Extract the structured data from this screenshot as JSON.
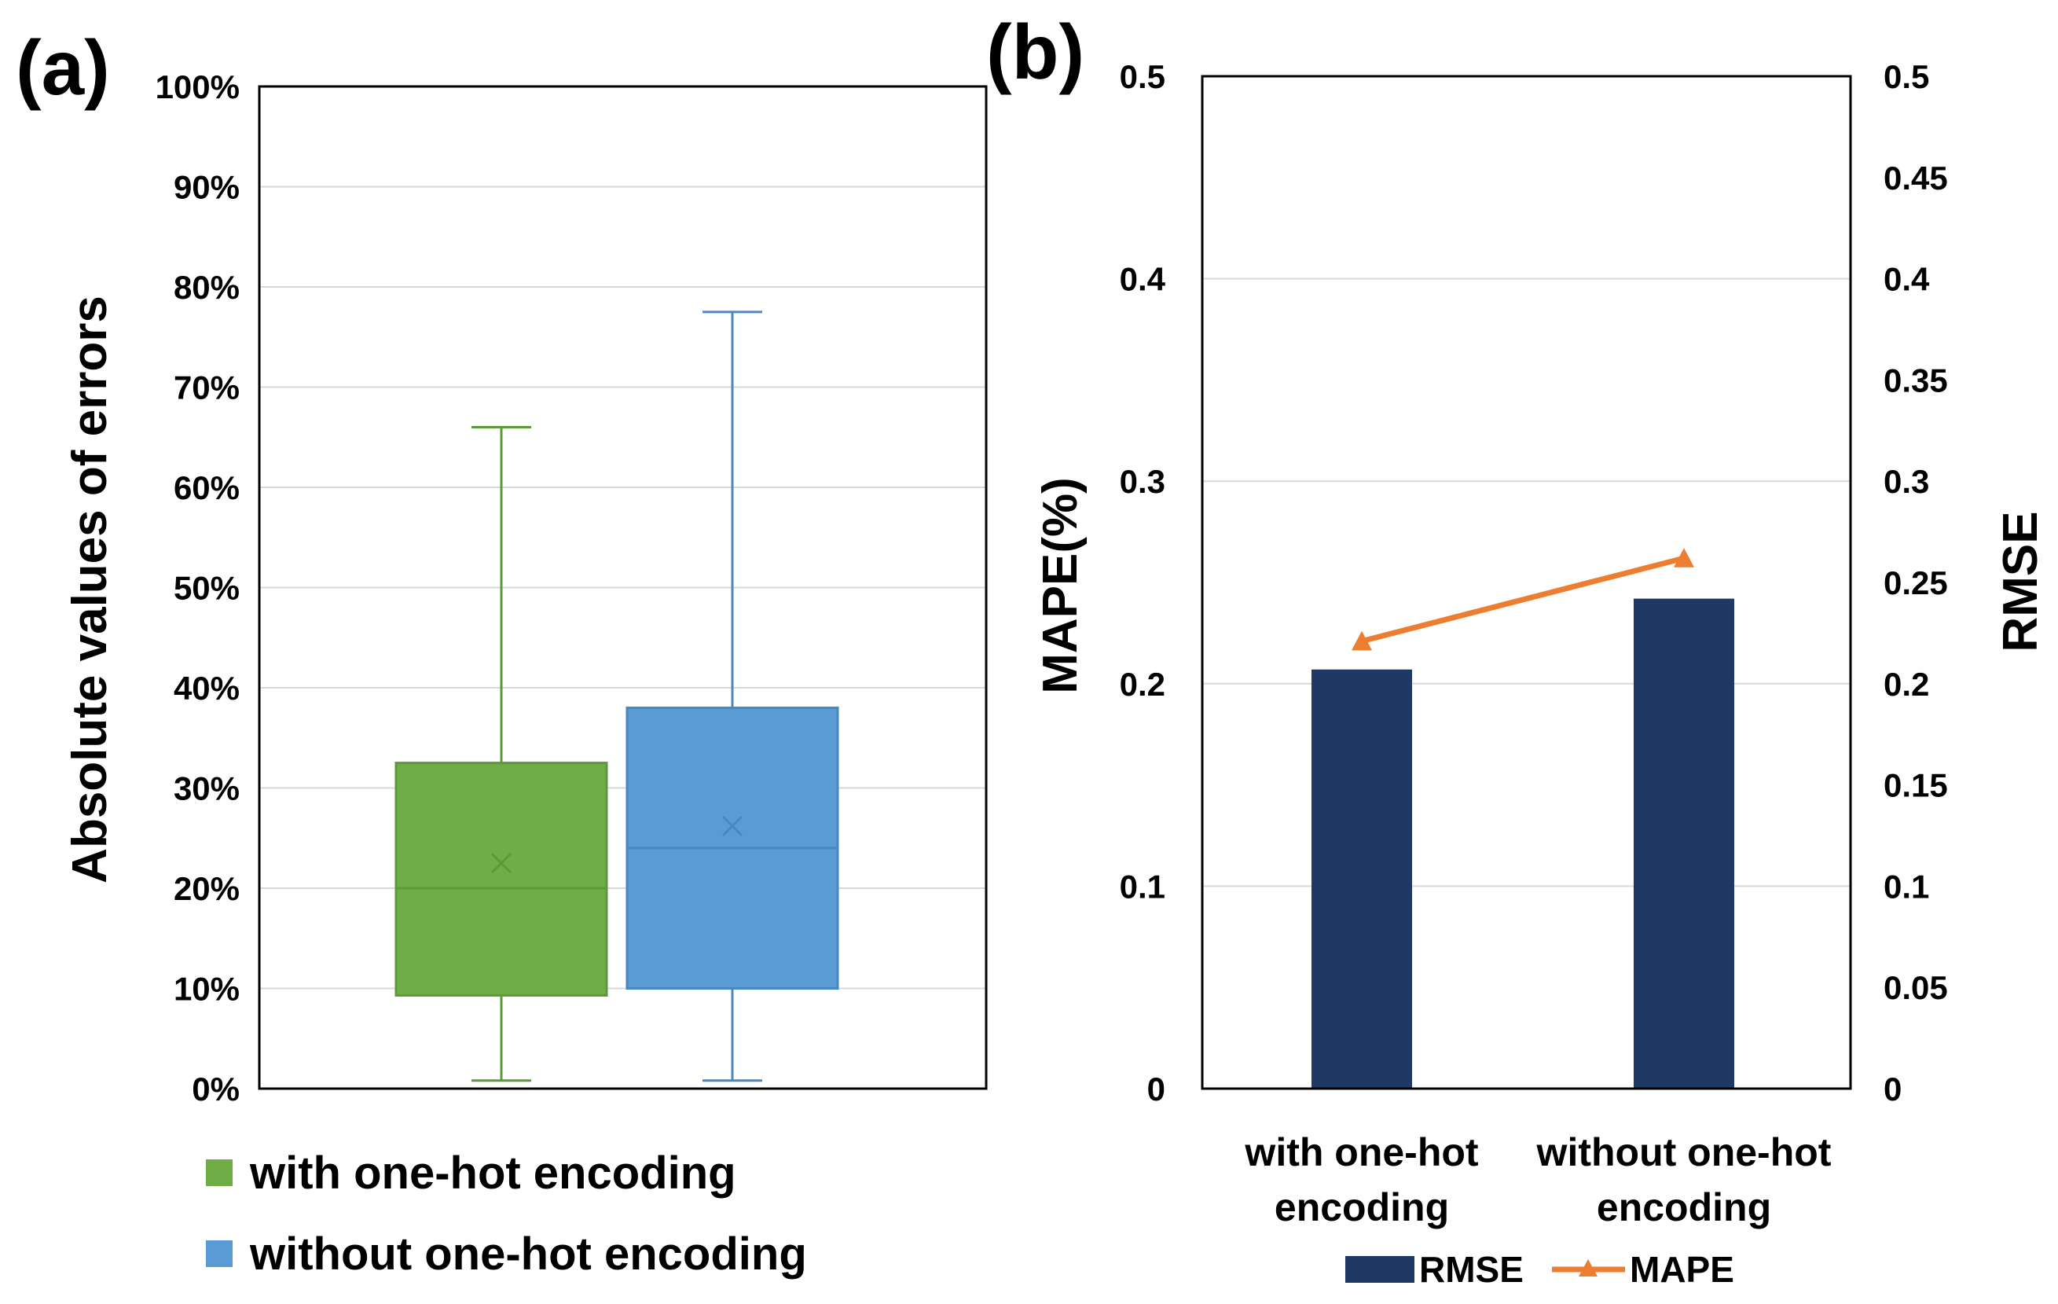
{
  "panels": {
    "a": {
      "label": "(a)"
    },
    "b": {
      "label": "(b)"
    }
  },
  "chart_data": [
    {
      "type": "box",
      "title": "",
      "ylabel": "Absolute values of errors",
      "ylim": [
        0,
        100
      ],
      "yticks": [
        "0%",
        "10%",
        "20%",
        "30%",
        "40%",
        "50%",
        "60%",
        "70%",
        "80%",
        "90%",
        "100%"
      ],
      "grid": true,
      "legend_position": "bottom-left",
      "series": [
        {
          "name": "with one-hot encoding",
          "color": "#70ad47",
          "stroke": "#5a9a3a",
          "min": 0.8,
          "q1": 9.3,
          "median": 20,
          "q3": 32.5,
          "max": 66,
          "mean": 22.5
        },
        {
          "name": "without one-hot encoding",
          "color": "#5b9bd5",
          "stroke": "#4a86c0",
          "min": 0.8,
          "q1": 10,
          "median": 24,
          "q3": 38,
          "max": 77.5,
          "mean": 26.2
        }
      ]
    },
    {
      "type": "bar+line",
      "title": "",
      "categories": [
        [
          "with one-hot",
          "encoding"
        ],
        [
          "without one-hot",
          "encoding"
        ]
      ],
      "left_axis": {
        "label": "MAPE(%)",
        "ylim": [
          0,
          0.5
        ],
        "ticks": [
          "0",
          "0.1",
          "0.2",
          "0.3",
          "0.4",
          "0.5"
        ]
      },
      "right_axis": {
        "label": "RMSE",
        "ylim": [
          0,
          0.5
        ],
        "ticks": [
          "0",
          "0.05",
          "0.1",
          "0.15",
          "0.2",
          "0.25",
          "0.3",
          "0.35",
          "0.4",
          "0.45",
          "0.5"
        ]
      },
      "grid": true,
      "legend_position": "bottom-center",
      "series": [
        {
          "name": "RMSE",
          "type": "bar",
          "axis": "right",
          "color": "#1f3864",
          "values": [
            0.207,
            0.242
          ]
        },
        {
          "name": "MAPE",
          "type": "line",
          "axis": "left",
          "color": "#ed7d31",
          "marker": "triangle",
          "values": [
            0.221,
            0.262
          ]
        }
      ]
    }
  ]
}
